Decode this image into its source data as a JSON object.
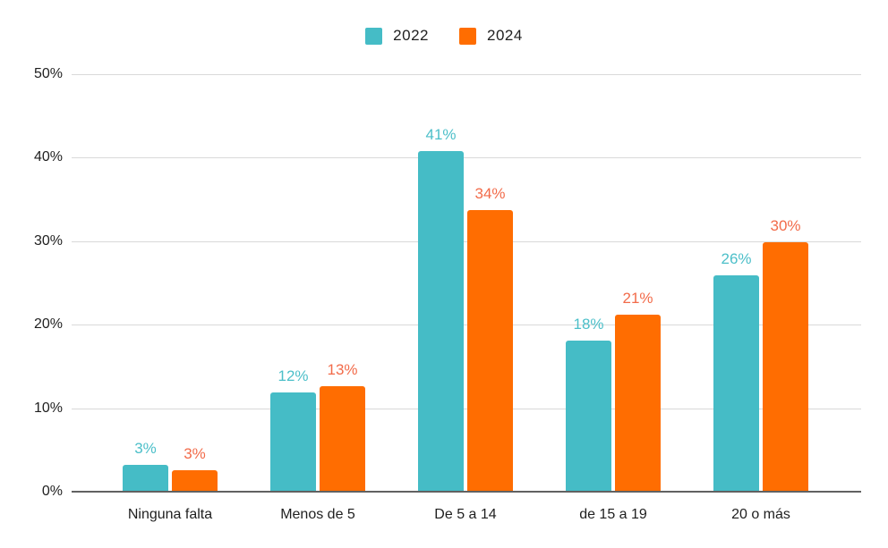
{
  "chart_data": {
    "type": "bar",
    "title": "",
    "xlabel": "",
    "ylabel": "",
    "categories": [
      "Ninguna falta",
      "Menos de 5",
      "De 5 a 14",
      "de 15 a 19",
      "20 o más"
    ],
    "series": [
      {
        "name": "2022",
        "color": "#45BCC6",
        "label_color": "#4CBFC9",
        "values": [
          3,
          12,
          41,
          18,
          26
        ],
        "labels": [
          "3%",
          "12%",
          "41%",
          "18%",
          "26%"
        ],
        "bar_heights_pct": [
          3.2,
          11.9,
          40.8,
          18.1,
          25.9
        ]
      },
      {
        "name": "2024",
        "color": "#FF6D01",
        "label_color": "#F26B4A",
        "values": [
          3,
          13,
          34,
          21,
          30
        ],
        "labels": [
          "3%",
          "13%",
          "34%",
          "21%",
          "30%"
        ],
        "bar_heights_pct": [
          2.6,
          12.6,
          33.7,
          21.2,
          29.9
        ]
      }
    ],
    "yticks": [
      {
        "label": "0%",
        "value": 0
      },
      {
        "label": "10%",
        "value": 10
      },
      {
        "label": "20%",
        "value": 20
      },
      {
        "label": "30%",
        "value": 30
      },
      {
        "label": "40%",
        "value": 40
      },
      {
        "label": "50%",
        "value": 50
      }
    ],
    "ylim": [
      0,
      50
    ],
    "grid": true,
    "legend_position": "top",
    "axis_text_color": "#1f1f1f",
    "gridline_color": "#d9d9d9",
    "baseline_color": "#616161"
  }
}
